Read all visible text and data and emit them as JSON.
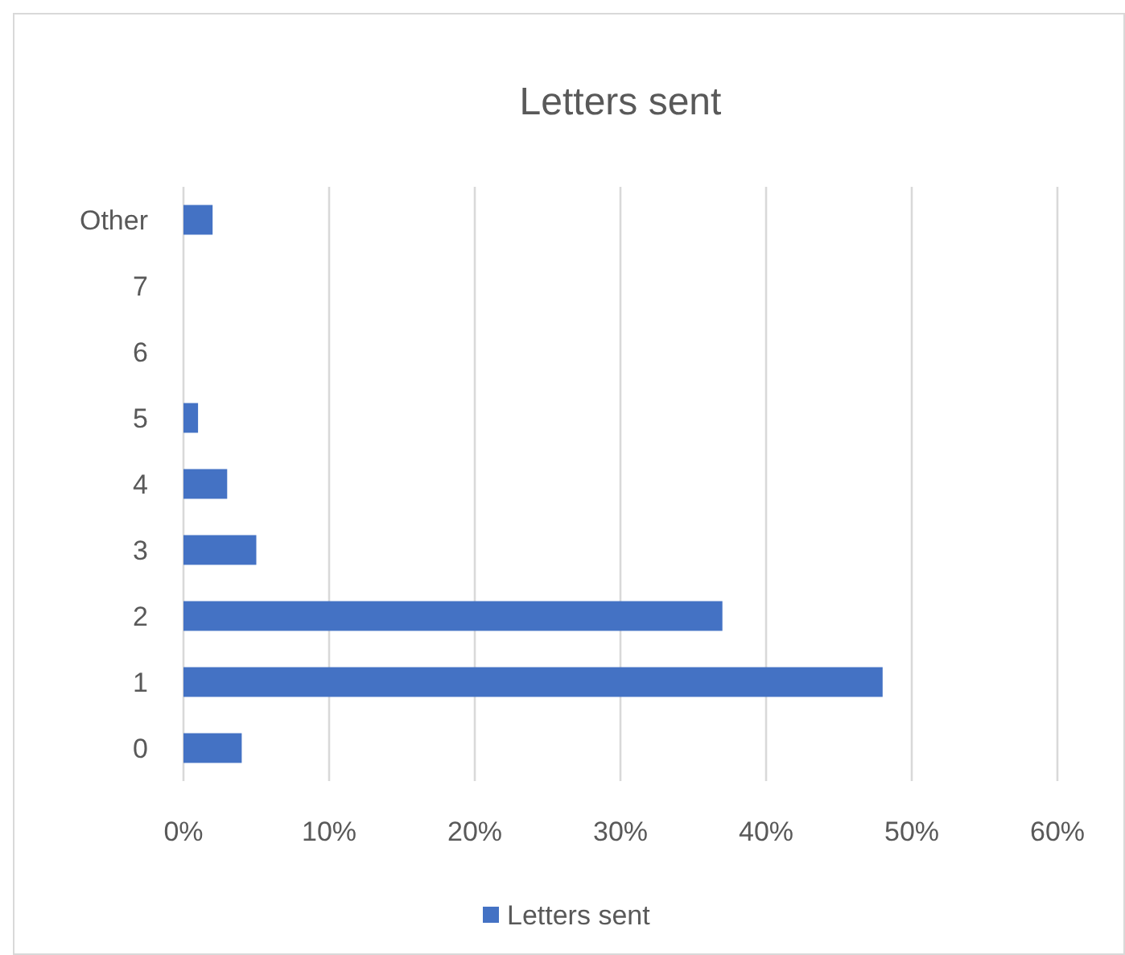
{
  "chart_data": {
    "type": "bar",
    "orientation": "horizontal",
    "title": "Letters sent",
    "categories": [
      "Other",
      "7",
      "6",
      "5",
      "4",
      "3",
      "2",
      "1",
      "0"
    ],
    "series": [
      {
        "name": "Letters sent",
        "color": "#4472c4",
        "values": [
          2,
          0,
          0,
          1,
          3,
          5,
          37,
          48,
          4
        ]
      }
    ],
    "xlim": [
      0,
      60
    ],
    "xticks": [
      {
        "value": 0,
        "label": "0%"
      },
      {
        "value": 10,
        "label": "10%"
      },
      {
        "value": 20,
        "label": "20%"
      },
      {
        "value": 30,
        "label": "30%"
      },
      {
        "value": 40,
        "label": "40%"
      },
      {
        "value": 50,
        "label": "50%"
      },
      {
        "value": 60,
        "label": "60%"
      }
    ],
    "grid": "x",
    "legend": "bottom"
  }
}
